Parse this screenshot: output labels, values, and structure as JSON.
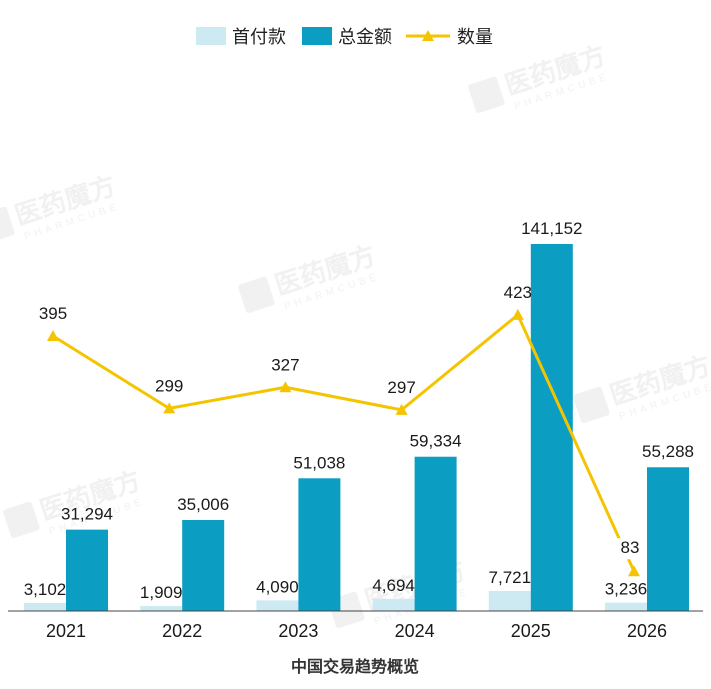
{
  "chart_data": {
    "type": "bar",
    "title": "中国交易趋势概览",
    "categories": [
      "2021",
      "2022",
      "2023",
      "2024",
      "2025",
      "2026"
    ],
    "series": [
      {
        "name": "首付款",
        "type": "bar",
        "color": "#cde9f2",
        "values": [
          3102,
          1909,
          4090,
          4694,
          7721,
          3236
        ],
        "labels": [
          "3,102",
          "1,909",
          "4,090",
          "4,694",
          "7,721",
          "3,236"
        ]
      },
      {
        "name": "总金额",
        "type": "bar",
        "color": "#0b9ec2",
        "values": [
          31294,
          35006,
          51038,
          59334,
          141152,
          55288
        ],
        "labels": [
          "31,294",
          "35,006",
          "51,038",
          "59,334",
          "141,152",
          "55,288"
        ]
      },
      {
        "name": "数量",
        "type": "line",
        "color": "#f5c400",
        "values": [
          395,
          299,
          327,
          297,
          423,
          83
        ],
        "labels": [
          "395",
          "299",
          "327",
          "297",
          "423",
          "83"
        ]
      }
    ],
    "legend_position": "top-center",
    "grid": false
  },
  "watermark": {
    "brand": "医药魔方",
    "sub": "PHARMCUBE"
  }
}
